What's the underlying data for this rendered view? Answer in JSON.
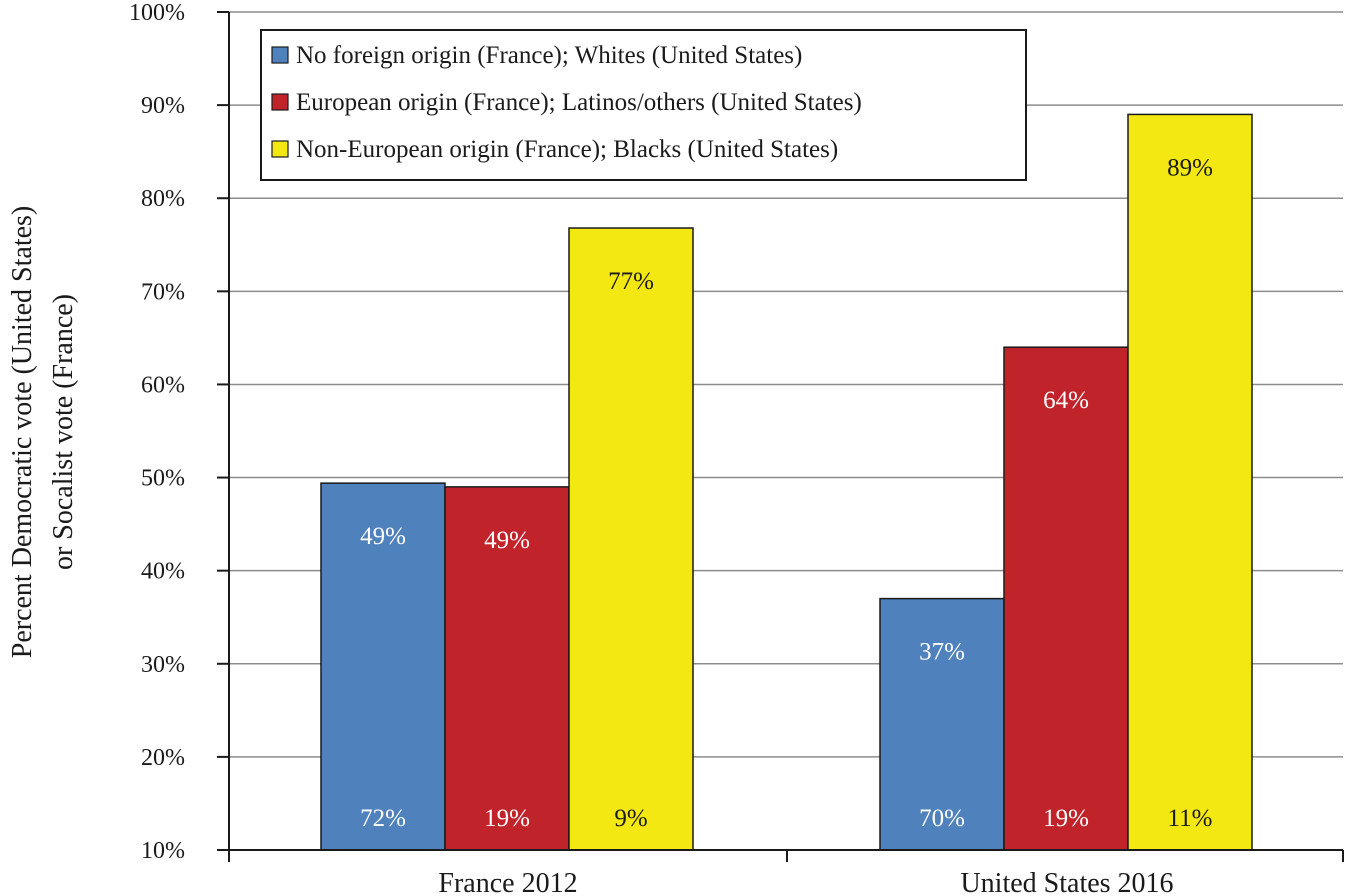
{
  "chart_data": {
    "type": "bar",
    "categories": [
      "France 2012",
      "United States 2016"
    ],
    "series": [
      {
        "name": "No foreign origin (France); Whites (United States)",
        "color": "#4f81bd",
        "values": [
          49.4,
          37
        ],
        "top_labels": [
          "49%",
          "37%"
        ],
        "bottom_labels": [
          "72%",
          "70%"
        ],
        "label_color": "#ffffff"
      },
      {
        "name": "European origin (France); Latinos/others (United States)",
        "color": "#c0232a",
        "values": [
          49,
          64
        ],
        "top_labels": [
          "49%",
          "64%"
        ],
        "bottom_labels": [
          "19%",
          "19%"
        ],
        "label_color": "#ffffff"
      },
      {
        "name": "Non-European origin (France); Blacks (United States)",
        "color": "#f4e813",
        "values": [
          76.8,
          89
        ],
        "top_labels": [
          "77%",
          "89%"
        ],
        "bottom_labels": [
          "9%",
          "11%"
        ],
        "label_color": "#1a1a1a"
      }
    ],
    "ylim": [
      10,
      100
    ],
    "yticks": [
      10,
      20,
      30,
      40,
      50,
      60,
      70,
      80,
      90,
      100
    ],
    "ytick_labels": [
      "10%",
      "20%",
      "30%",
      "40%",
      "50%",
      "60%",
      "70%",
      "80%",
      "90%",
      "100%"
    ],
    "ylabel_line1": "Percent Democratic vote (United States)",
    "ylabel_line2": "or Socalist vote (France)",
    "xlabel": "",
    "title": "",
    "grid": true,
    "legend_position": "top-left"
  }
}
